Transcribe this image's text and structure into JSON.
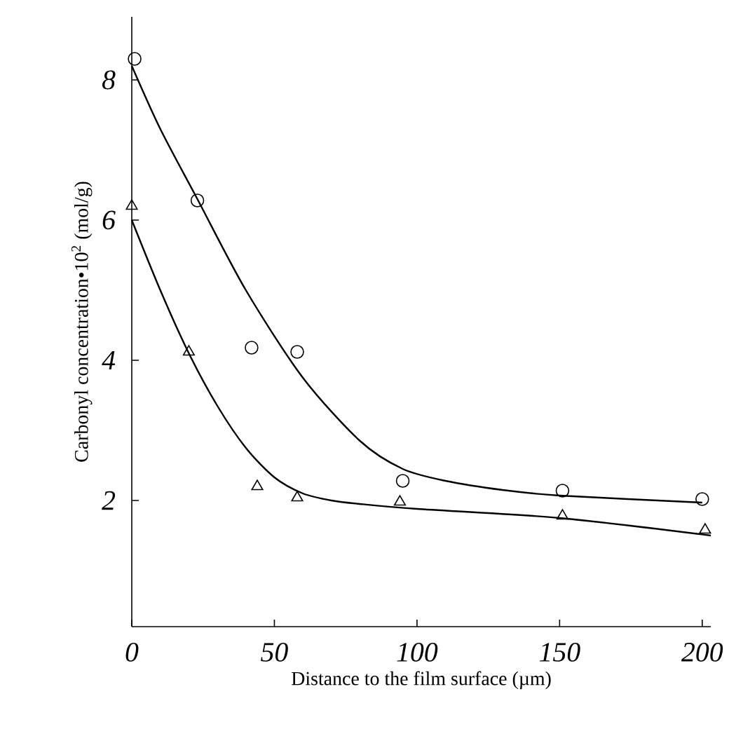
{
  "chart_data": {
    "type": "scatter",
    "xlabel": "Distance to the film surface (µm)",
    "ylabel": "Carbonyl concentration•10$^{2}$ (mol/g)",
    "xlim": [
      0,
      203
    ],
    "ylim": [
      0.2,
      8.9
    ],
    "xticks": [
      0,
      50,
      100,
      150,
      200
    ],
    "yticks": [
      2,
      4,
      6,
      8
    ],
    "grid": false,
    "series": [
      {
        "marker": "circle",
        "color": "#000000",
        "x": [
          1,
          23,
          42,
          58,
          95,
          151,
          200
        ],
        "values": [
          8.3,
          6.28,
          4.18,
          4.12,
          2.28,
          2.14,
          2.02
        ]
      },
      {
        "marker": "triangle",
        "color": "#000000",
        "x": [
          0,
          20,
          44,
          58,
          94,
          151,
          201
        ],
        "values": [
          6.2,
          4.12,
          2.2,
          2.04,
          1.98,
          1.78,
          1.58
        ]
      },
      {
        "type": "line",
        "marker": "none",
        "color": "#000000",
        "x": [
          0,
          10,
          23,
          40,
          60,
          80,
          95,
          110,
          130,
          150,
          200
        ],
        "values": [
          8.2,
          7.3,
          6.3,
          5.0,
          3.75,
          2.85,
          2.45,
          2.28,
          2.15,
          2.07,
          1.97
        ]
      },
      {
        "type": "line",
        "marker": "none",
        "color": "#000000",
        "x": [
          0,
          10,
          20,
          30,
          40,
          50,
          60,
          70,
          80,
          100,
          150,
          203
        ],
        "values": [
          6.0,
          5.0,
          4.1,
          3.35,
          2.75,
          2.33,
          2.1,
          2.0,
          1.95,
          1.88,
          1.75,
          1.5
        ]
      }
    ]
  }
}
